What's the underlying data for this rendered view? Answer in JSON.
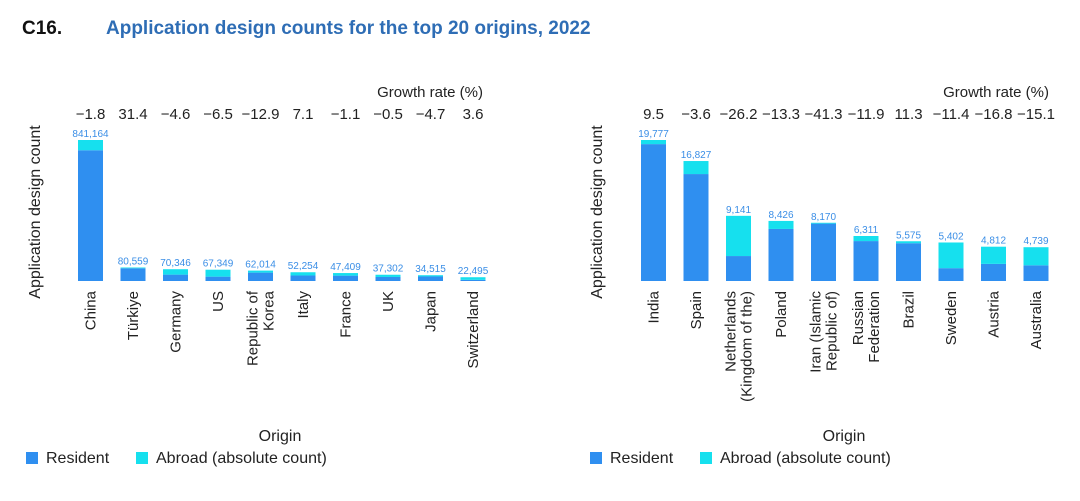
{
  "figure": {
    "number": "C16.",
    "title": "Application design counts for the top 20 origins, 2022"
  },
  "colors": {
    "resident": "#2f8ff0",
    "abroad": "#16e0ee",
    "label": "#3a8ee6"
  },
  "chart_data": [
    {
      "type": "bar",
      "stacked": true,
      "title": "",
      "xlabel": "Origin",
      "ylabel": "Application design count",
      "growth_header": "Growth rate (%)",
      "categories": [
        [
          "China"
        ],
        [
          "Türkiye"
        ],
        [
          "Germany"
        ],
        [
          "US"
        ],
        [
          "Republic of",
          "Korea"
        ],
        [
          "Italy"
        ],
        [
          "France"
        ],
        [
          "UK"
        ],
        [
          "Japan"
        ],
        [
          "Switzerland"
        ]
      ],
      "totals": [
        841164,
        80559,
        70346,
        67349,
        62014,
        52254,
        47409,
        37302,
        34515,
        22495
      ],
      "total_labels": [
        "841,164",
        "80,559",
        "70,346",
        "67,349",
        "62,014",
        "52,254",
        "47,409",
        "37,302",
        "34,515",
        "22,495"
      ],
      "series": [
        {
          "name": "Resident",
          "values": [
            780000,
            76000,
            38000,
            26000,
            50000,
            33000,
            32000,
            24000,
            27000,
            7000
          ]
        },
        {
          "name": "Abroad (absolute count)",
          "values": [
            61164,
            4559,
            32346,
            41349,
            12014,
            19254,
            15409,
            13302,
            7515,
            15495
          ]
        }
      ],
      "growth": [
        "−1.8",
        "31.4",
        "−4.6",
        "−6.5",
        "−12.9",
        "7.1",
        "−1.1",
        "−0.5",
        "−4.7",
        "3.6"
      ],
      "ylim": [
        0,
        841164
      ],
      "legend": [
        "Resident",
        "Abroad (absolute count)"
      ]
    },
    {
      "type": "bar",
      "stacked": true,
      "title": "",
      "xlabel": "Origin",
      "ylabel": "Application design count",
      "growth_header": "Growth rate (%)",
      "categories": [
        [
          "India"
        ],
        [
          "Spain"
        ],
        [
          "Netherlands",
          "(Kingdom of the)"
        ],
        [
          "Poland"
        ],
        [
          "Iran (Islamic",
          "Republic of)"
        ],
        [
          "Russian",
          "Federation"
        ],
        [
          "Brazil"
        ],
        [
          "Sweden"
        ],
        [
          "Austria"
        ],
        [
          "Australia"
        ]
      ],
      "totals": [
        19777,
        16827,
        9141,
        8426,
        8170,
        6311,
        5575,
        5402,
        4812,
        4739
      ],
      "total_labels": [
        "19,777",
        "16,827",
        "9,141",
        "8,426",
        "8,170",
        "6,311",
        "5,575",
        "5,402",
        "4,812",
        "4,739"
      ],
      "series": [
        {
          "name": "Resident",
          "values": [
            19200,
            15000,
            3500,
            7300,
            8050,
            5600,
            5300,
            1800,
            2400,
            2200
          ]
        },
        {
          "name": "Abroad (absolute count)",
          "values": [
            577,
            1827,
            5641,
            1126,
            120,
            711,
            275,
            3602,
            2412,
            2539
          ]
        }
      ],
      "growth": [
        "9.5",
        "−3.6",
        "−26.2",
        "−13.3",
        "−41.3",
        "−11.9",
        "11.3",
        "−11.4",
        "−16.8",
        "−15.1"
      ],
      "ylim": [
        0,
        19777
      ],
      "legend": [
        "Resident",
        "Abroad (absolute count)"
      ]
    }
  ]
}
